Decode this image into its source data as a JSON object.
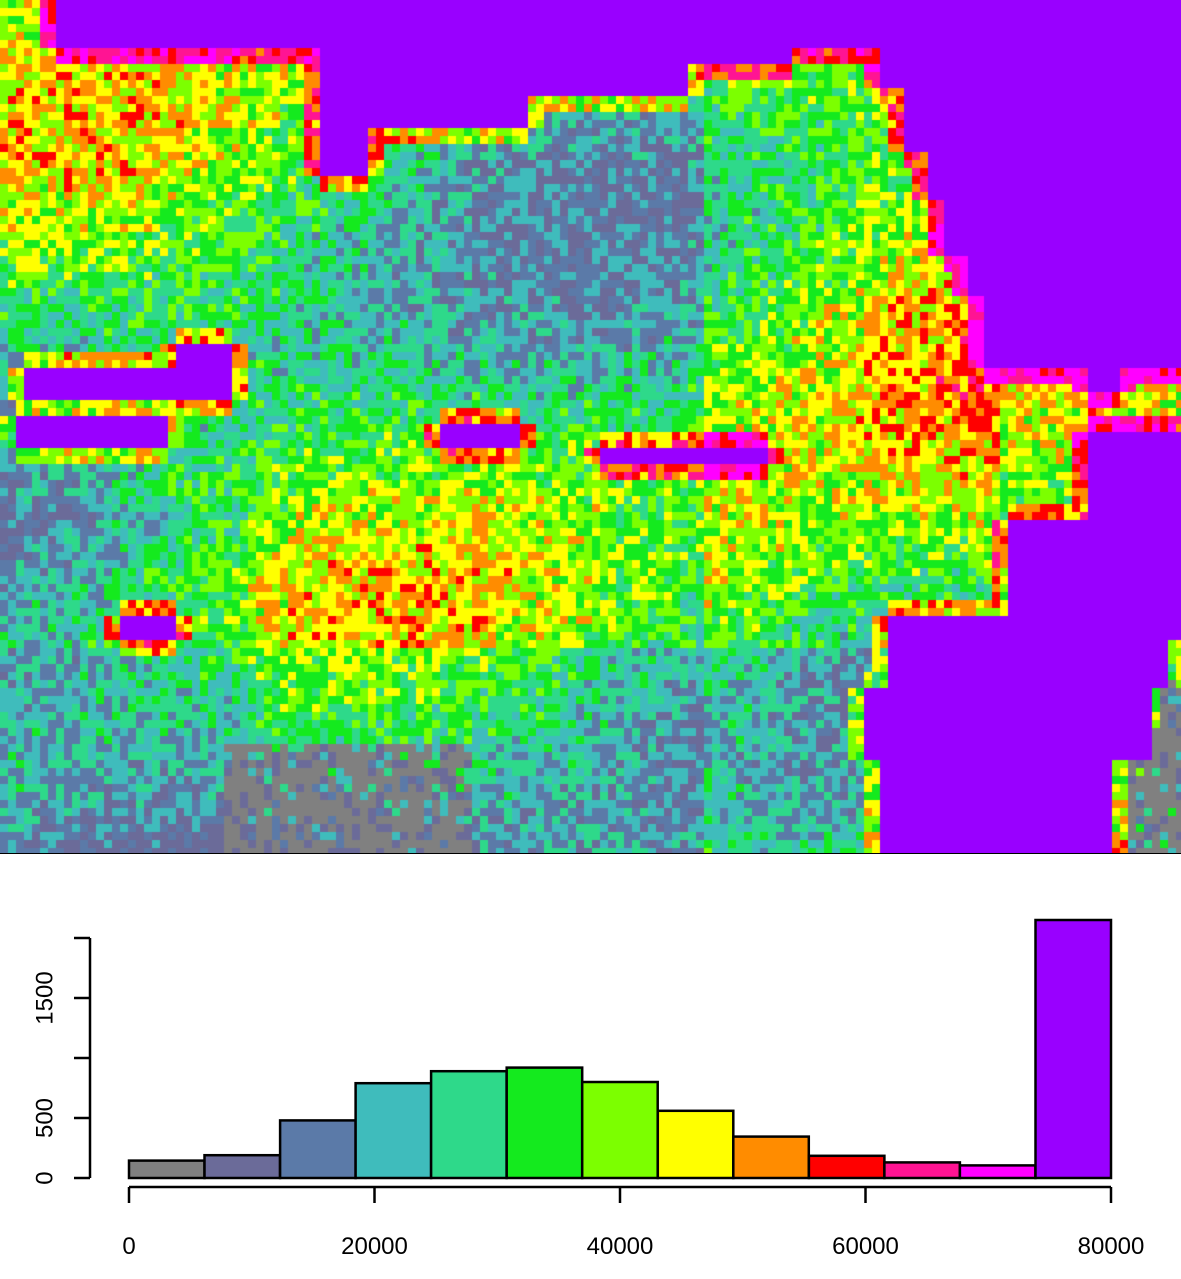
{
  "chart_data": [
    {
      "type": "heatmap",
      "colors": [
        "#808080",
        "#6b6b99",
        "#5b7aa8",
        "#3fbcbc",
        "#2ed98a",
        "#14ea1e",
        "#7cff00",
        "#ffff00",
        "#ff8c00",
        "#ff0000",
        "#ff1493",
        "#ff00ff",
        "#9900ff"
      ]
    },
    {
      "type": "bar",
      "title": "",
      "xlabel": "",
      "ylabel": "",
      "bin_edges": [
        0,
        6154,
        12308,
        18462,
        24615,
        30769,
        36923,
        43077,
        49231,
        55385,
        61538,
        67692,
        73846,
        80000
      ],
      "values": [
        145,
        190,
        480,
        790,
        890,
        920,
        800,
        560,
        345,
        185,
        130,
        105,
        2150
      ],
      "colors": [
        "#808080",
        "#6b6b99",
        "#5b7aa8",
        "#3fbcbc",
        "#2ed98a",
        "#14ea1e",
        "#7cff00",
        "#ffff00",
        "#ff8c00",
        "#ff0000",
        "#ff1493",
        "#ff00ff",
        "#9900ff"
      ],
      "xlim": [
        0,
        80000
      ],
      "ylim": [
        0,
        2000
      ],
      "x_ticks": [
        0,
        20000,
        40000,
        60000,
        80000
      ],
      "x_tick_labels": [
        "0",
        "20000",
        "40000",
        "60000",
        "80000"
      ],
      "y_ticks": [
        0,
        500,
        1000,
        1500,
        2000
      ],
      "y_tick_labels": [
        "0",
        "500",
        "",
        "1500",
        ""
      ]
    }
  ]
}
